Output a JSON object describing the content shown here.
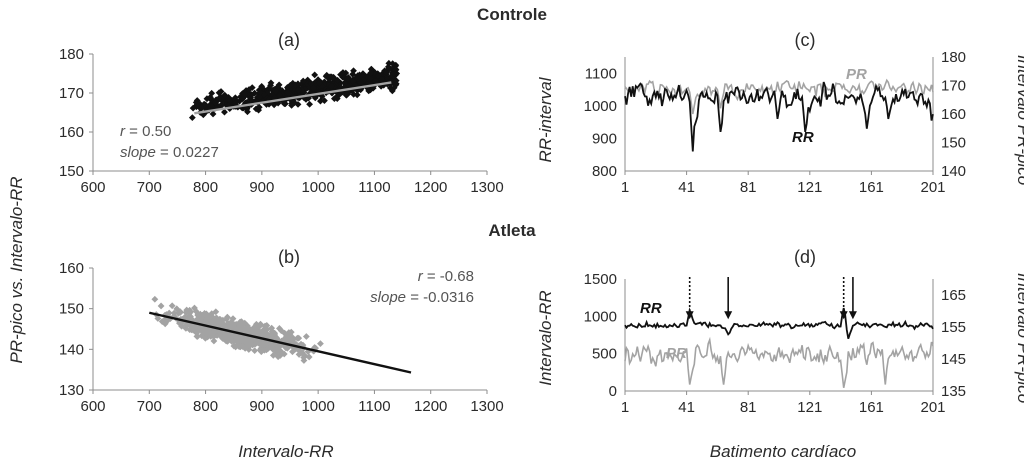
{
  "sections": {
    "top": "Controle",
    "bottom": "Atleta"
  },
  "shared_labels": {
    "scatter_ylabel": "PR-pico vs. Intervalo-RR",
    "scatter_xlabel": "Intervalo-RR",
    "series_xlabel": "Batimento cardíaco"
  },
  "colors": {
    "black": "#111111",
    "gray": "#a3a3a3",
    "axis": "#8c8c8c",
    "text": "#2b2b2b"
  },
  "chart_data": [
    {
      "id": "a",
      "panel_label": "(a)",
      "type": "scatter",
      "title": "Controle",
      "xlim": [
        600,
        1300
      ],
      "ylim": [
        150,
        180
      ],
      "xticks": [
        600,
        700,
        800,
        900,
        1000,
        1100,
        1200,
        1300
      ],
      "yticks": [
        150,
        160,
        170,
        180
      ],
      "points": {
        "color": "#111111",
        "marker": "diamond",
        "x_range": [
          775,
          1140
        ],
        "y_band": [
          162,
          178
        ],
        "count": 650,
        "note": "dense cloud, higher density toward x 950-1100"
      },
      "regression": {
        "x": [
          780,
          1130
        ],
        "y": [
          164.8,
          172.7
        ],
        "color": "#a3a3a3"
      },
      "stats": {
        "r_label": "r",
        "r_value": "= 0.50",
        "slope_label": "slope",
        "slope_value": "= 0.0227"
      }
    },
    {
      "id": "b",
      "panel_label": "(b)",
      "type": "scatter",
      "title": "Atleta",
      "xlim": [
        600,
        1300
      ],
      "ylim": [
        130,
        160
      ],
      "xticks": [
        600,
        700,
        800,
        900,
        1000,
        1100,
        1200,
        1300
      ],
      "yticks": [
        130,
        140,
        150,
        160
      ],
      "points": {
        "color": "#a3a3a3",
        "marker": "diamond",
        "x_range": [
          680,
          1165
        ],
        "y_band": [
          133,
          155
        ],
        "count": 700
      },
      "regression": {
        "x": [
          700,
          1165
        ],
        "y": [
          149,
          134.3
        ],
        "color": "#111111"
      },
      "stats": {
        "r_label": "r",
        "r_value": "= -0.68",
        "slope_label": "slope",
        "slope_value": "= -0.0316"
      }
    },
    {
      "id": "c",
      "panel_label": "(c)",
      "type": "line",
      "xticks": [
        1,
        41,
        81,
        121,
        161,
        201
      ],
      "xlim": [
        1,
        201
      ],
      "ylabel_left": "RR-interval",
      "ylim_left": [
        800,
        1150
      ],
      "yticks_left": [
        800,
        900,
        1000,
        1100
      ],
      "ylabel_right": "Intervalo PR-pico",
      "ylim_right": [
        140,
        180
      ],
      "yticks_right": [
        140,
        150,
        160,
        170,
        180
      ],
      "series": [
        {
          "name": "RR",
          "axis": "left",
          "color": "#111111",
          "mean": 1030,
          "amp": 45,
          "dips": [
            [
              45,
              860
            ],
            [
              47,
              950
            ],
            [
              63,
              920
            ],
            [
              100,
              960
            ],
            [
              118,
              920
            ],
            [
              158,
              930
            ],
            [
              172,
              960
            ],
            [
              200,
              955
            ]
          ]
        },
        {
          "name": "PR",
          "axis": "right",
          "color": "#a3a3a3",
          "mean": 169,
          "amp": 3.5,
          "dips": [
            [
              45,
              160
            ],
            [
              63,
              162
            ]
          ]
        }
      ]
    },
    {
      "id": "d",
      "panel_label": "(d)",
      "type": "line",
      "xticks": [
        1,
        41,
        81,
        121,
        161,
        201
      ],
      "xlim": [
        1,
        201
      ],
      "ylabel_left": "Intervalo-RR",
      "ylim_left": [
        0,
        1500
      ],
      "yticks_left": [
        0,
        500,
        1000,
        1500
      ],
      "ylabel_right": "Intervalo PR-pico",
      "ylim_right": [
        135,
        170
      ],
      "yticks_right": [
        135,
        145,
        155,
        165
      ],
      "series": [
        {
          "name": "RR",
          "axis": "left",
          "color": "#111111",
          "mean": 880,
          "amp": 55,
          "dips": [
            [
              43,
              1080
            ],
            [
              68,
              760
            ],
            [
              143,
              1110
            ],
            [
              146,
              700
            ]
          ]
        },
        {
          "name": "PR",
          "axis": "right",
          "color": "#a3a3a3",
          "mean": 146.5,
          "amp": 4.5,
          "dips": [
            [
              43,
              137
            ],
            [
              65,
              137
            ],
            [
              143,
              136
            ],
            [
              170,
              137
            ]
          ]
        }
      ],
      "markers": [
        {
          "x": 43,
          "style": "dotted"
        },
        {
          "x": 68,
          "style": "solid"
        },
        {
          "x": 143,
          "style": "dotted"
        },
        {
          "x": 149,
          "style": "solid"
        }
      ]
    }
  ]
}
